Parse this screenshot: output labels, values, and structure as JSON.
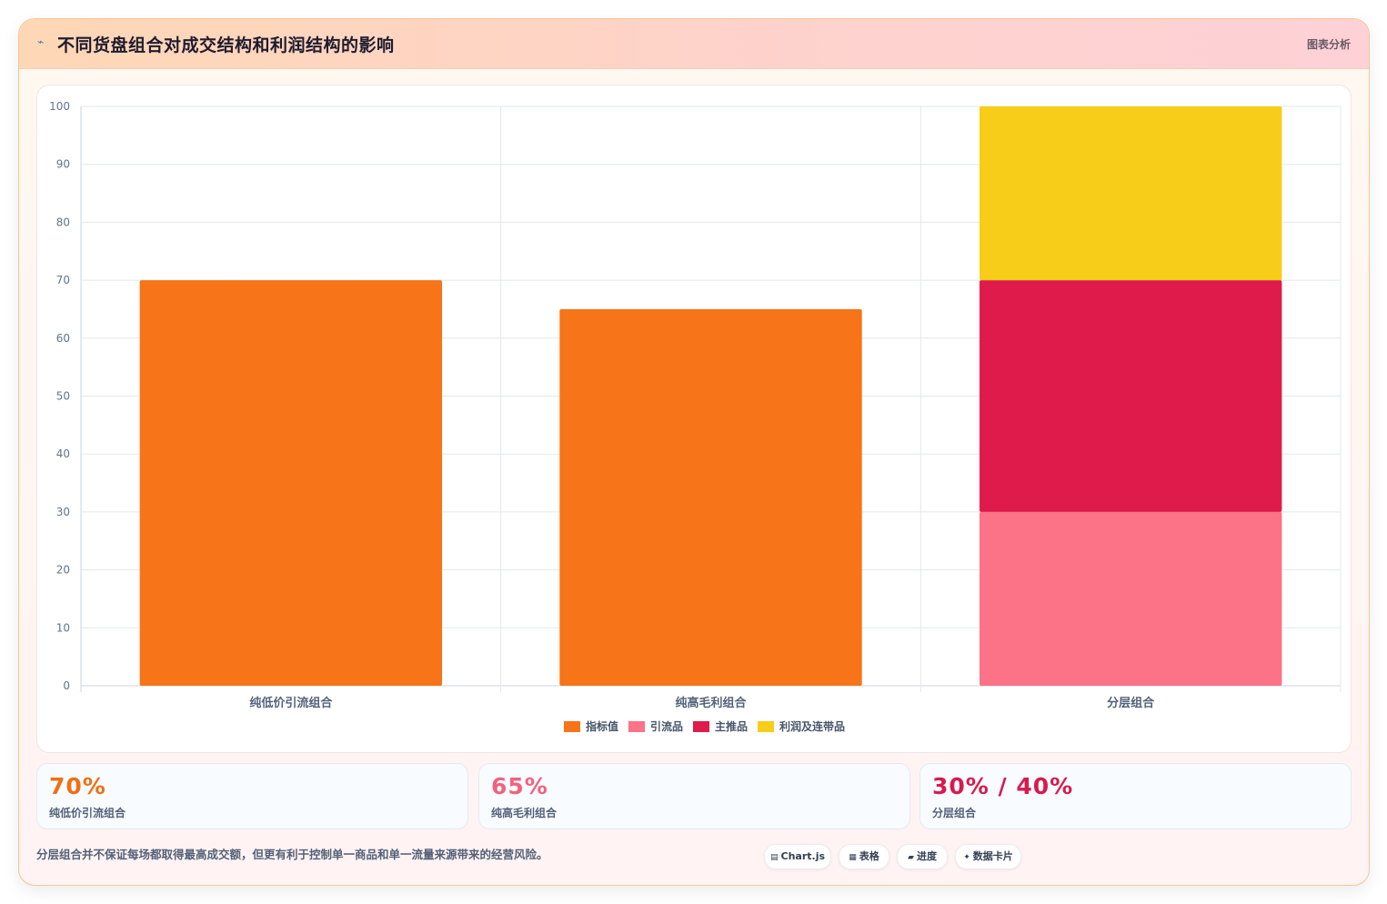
{
  "header": {
    "icon": "chart-icon",
    "title": "不同货盘组合对成交结构和利润结构的影响",
    "tag": "图表分析"
  },
  "chart_data": {
    "type": "bar",
    "stacked": true,
    "categories": [
      "纯低价引流组合",
      "纯高毛利组合",
      "分层组合"
    ],
    "series": [
      {
        "name": "指标值",
        "color": "#f77419",
        "values": [
          70,
          65,
          0
        ]
      },
      {
        "name": "引流品",
        "color": "#fc7286",
        "values": [
          0,
          0,
          30
        ]
      },
      {
        "name": "主推品",
        "color": "#df1b4b",
        "values": [
          0,
          0,
          40
        ]
      },
      {
        "name": "利润及连带品",
        "color": "#f7cd19",
        "values": [
          0,
          0,
          30
        ]
      }
    ],
    "ylim": [
      0,
      100
    ],
    "yticks": [
      "0",
      "10",
      "20",
      "30",
      "40",
      "50",
      "60",
      "70",
      "80",
      "90",
      "100"
    ],
    "grid": true,
    "legend_position": "bottom"
  },
  "stats": [
    {
      "value": "70%",
      "label": "纯低价引流组合",
      "color": "#f06f12"
    },
    {
      "value": "65%",
      "label": "纯高毛利组合",
      "color": "#f2627d"
    },
    {
      "value": "30% / 40%",
      "label": "分层组合",
      "color": "#d81b4c"
    }
  ],
  "footnote": "分层组合并不保证每场都取得最高成交额，但更有利于控制单一商品和单一流量来源带来的经营风险。",
  "pills": [
    {
      "icon": "chartjs-icon",
      "glyph": "▤",
      "label": "Chart.js"
    },
    {
      "icon": "table-icon",
      "glyph": "▦",
      "label": "表格"
    },
    {
      "icon": "progress-icon",
      "glyph": "▰",
      "label": "进度"
    },
    {
      "icon": "data-card-icon",
      "glyph": "✦",
      "label": "数据卡片"
    }
  ]
}
